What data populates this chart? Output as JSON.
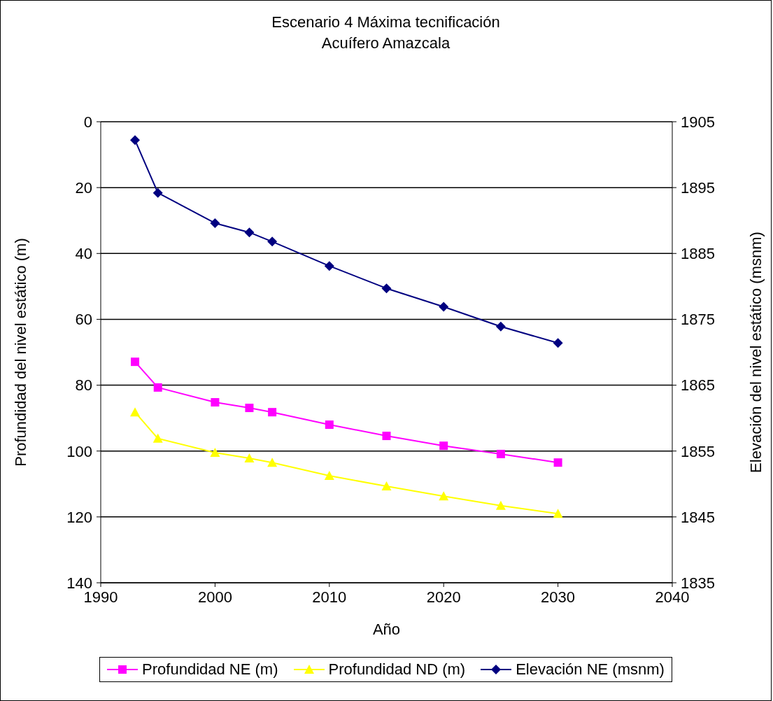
{
  "chart_data": {
    "type": "line",
    "title": "Escenario 4 Máxima tecnificación",
    "subtitle": "Acuífero Amazcala",
    "xlabel": "Año",
    "ylabel": "Profundidad del nivel estático (m)",
    "y2label": "Elevación del nivel estático (msnm)",
    "x": [
      1993,
      1995,
      2000,
      2003,
      2005,
      2010,
      2015,
      2020,
      2025,
      2030
    ],
    "xlim": [
      1990,
      2040
    ],
    "xticks": [
      1990,
      2000,
      2010,
      2020,
      2030,
      2040
    ],
    "ylim": [
      140,
      0
    ],
    "yticks": [
      0,
      20,
      40,
      60,
      80,
      100,
      120,
      140
    ],
    "y2lim": [
      1835,
      1905
    ],
    "y2ticks": [
      1835,
      1845,
      1855,
      1865,
      1875,
      1885,
      1895,
      1905
    ],
    "grid": "y",
    "legend": "bottom",
    "series": [
      {
        "name": "Profundidad NE (m)",
        "color": "#ff00ff",
        "marker": "square",
        "values": [
          72.9,
          80.7,
          85.2,
          86.9,
          88.2,
          92.0,
          95.4,
          98.4,
          100.9,
          103.5
        ]
      },
      {
        "name": "Profundidad ND (m)",
        "color": "#ffff00",
        "marker": "triangle",
        "values": [
          88.2,
          96.2,
          100.5,
          102.2,
          103.5,
          107.5,
          110.7,
          113.7,
          116.6,
          119.0
        ]
      },
      {
        "name": "Elevación NE (msnm)",
        "color": "#000080",
        "marker": "diamond",
        "axis": "y2",
        "values": [
          1902.2,
          1894.2,
          1889.6,
          1888.2,
          1886.8,
          1883.1,
          1879.7,
          1876.9,
          1873.9,
          1871.4
        ]
      }
    ]
  }
}
